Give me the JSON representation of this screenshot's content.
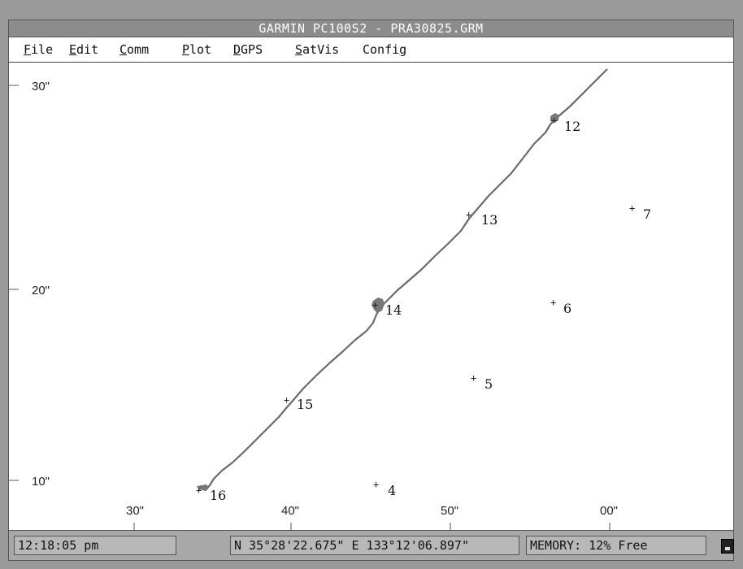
{
  "window": {
    "title": "GARMIN PC100S2 - PRA30825.GRM"
  },
  "menu": {
    "items": [
      {
        "label": "File",
        "key": "F"
      },
      {
        "label": "Edit",
        "key": "E"
      },
      {
        "label": "Comm",
        "key": "C"
      },
      {
        "label": "Plot",
        "key": "P"
      },
      {
        "label": "DGPS",
        "key": "D"
      },
      {
        "label": "SatVis",
        "key": "S"
      },
      {
        "label": "Config",
        "key": "g"
      }
    ]
  },
  "plot": {
    "y_ticks": [
      "30\"",
      "20\"",
      "10\""
    ],
    "x_ticks": [
      "30\"",
      "40\"",
      "50\"",
      "00\""
    ],
    "waypoints": [
      {
        "label": "12"
      },
      {
        "label": "13"
      },
      {
        "label": "14"
      },
      {
        "label": "15"
      },
      {
        "label": "16"
      },
      {
        "label": "7"
      },
      {
        "label": "6"
      },
      {
        "label": "5"
      },
      {
        "label": "4"
      }
    ],
    "track_color": "#6a6a6a"
  },
  "status": {
    "time": "12:18:05 pm",
    "position": "N 35°28'22.675\" E 133°12'06.897\"",
    "memory": "MEMORY:  12% Free"
  }
}
